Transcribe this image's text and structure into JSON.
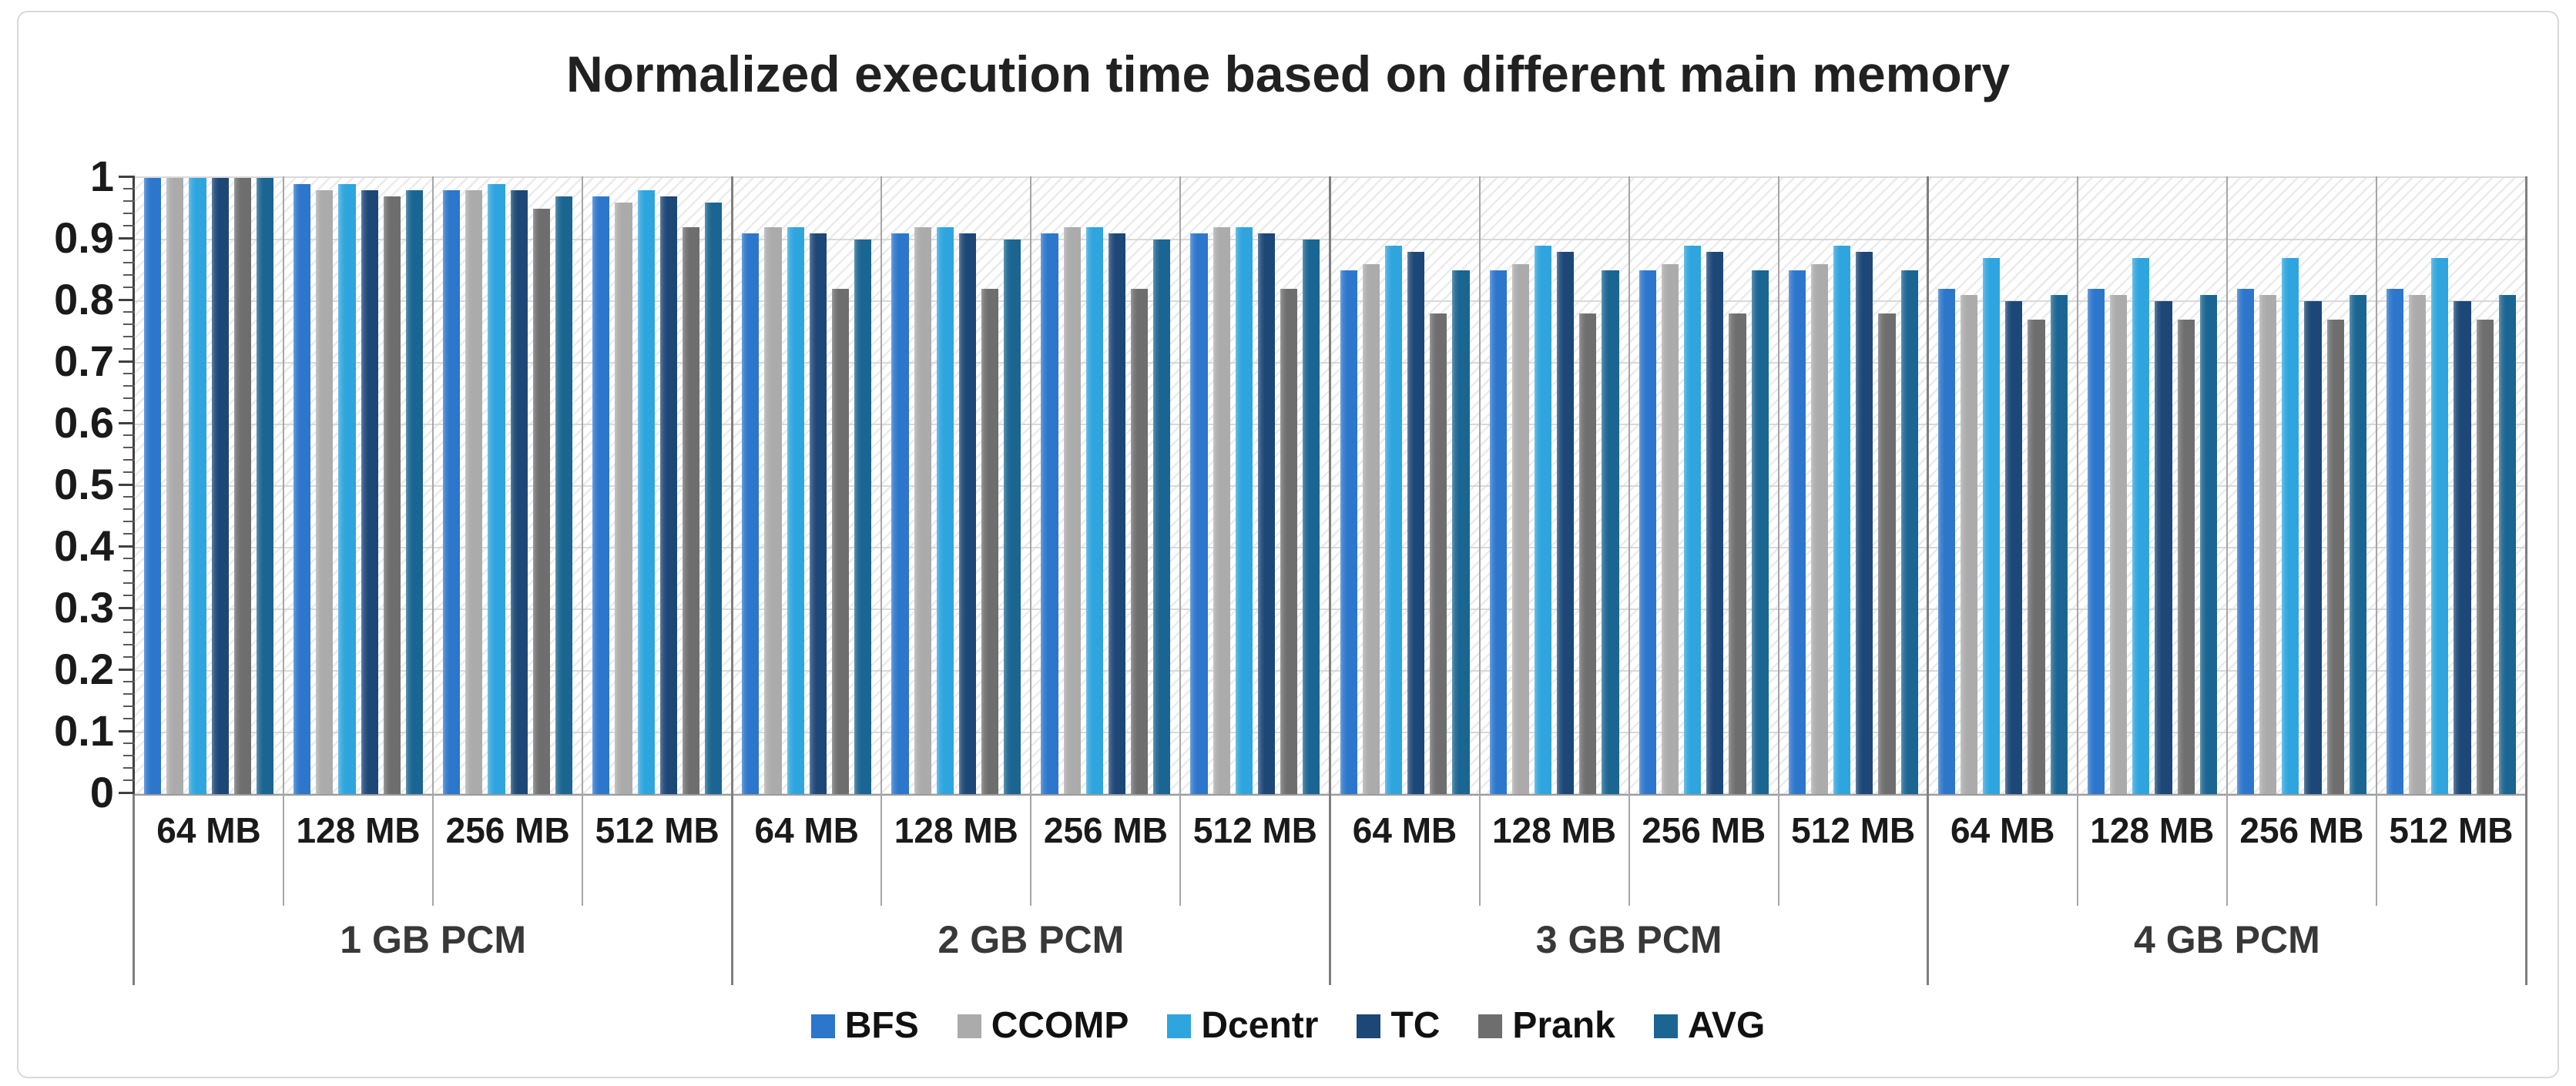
{
  "chart_data": {
    "type": "bar",
    "title": "Normalized execution time based on different main memory",
    "xlabel": "",
    "ylabel": "",
    "ylim": [
      0,
      1
    ],
    "ytick_labels_top_to_bottom": [
      "1",
      "0.9",
      "0.8",
      "0.7",
      "0.6",
      "0.5",
      "0.4",
      "0.3",
      "0.2",
      "0.1",
      "0"
    ],
    "minor_tick_step": 0.02,
    "grid": true,
    "legend_position": "bottom",
    "plot_background": "diagonal-hatch",
    "series": [
      {
        "name": "BFS",
        "color": "#2C76CC"
      },
      {
        "name": "CCOMP",
        "color": "#ABABAB"
      },
      {
        "name": "Dcentr",
        "color": "#2EA5DE"
      },
      {
        "name": "TC",
        "color": "#1C4777"
      },
      {
        "name": "Prank",
        "color": "#6E6E6E"
      },
      {
        "name": "AVG",
        "color": "#1A6591"
      }
    ],
    "groups": [
      {
        "label": "1 GB PCM",
        "clusters": [
          {
            "label": "64 MB",
            "values": [
              1.0,
              1.0,
              1.0,
              1.0,
              1.0,
              1.0
            ]
          },
          {
            "label": "128 MB",
            "values": [
              0.99,
              0.98,
              0.99,
              0.98,
              0.97,
              0.98
            ]
          },
          {
            "label": "256 MB",
            "values": [
              0.98,
              0.98,
              0.99,
              0.98,
              0.95,
              0.97
            ]
          },
          {
            "label": "512 MB",
            "values": [
              0.97,
              0.96,
              0.98,
              0.97,
              0.92,
              0.96
            ]
          }
        ]
      },
      {
        "label": "2 GB PCM",
        "clusters": [
          {
            "label": "64 MB",
            "values": [
              0.91,
              0.92,
              0.92,
              0.91,
              0.82,
              0.9
            ]
          },
          {
            "label": "128 MB",
            "values": [
              0.91,
              0.92,
              0.92,
              0.91,
              0.82,
              0.9
            ]
          },
          {
            "label": "256 MB",
            "values": [
              0.91,
              0.92,
              0.92,
              0.91,
              0.82,
              0.9
            ]
          },
          {
            "label": "512 MB",
            "values": [
              0.91,
              0.92,
              0.92,
              0.91,
              0.82,
              0.9
            ]
          }
        ]
      },
      {
        "label": "3 GB PCM",
        "clusters": [
          {
            "label": "64 MB",
            "values": [
              0.85,
              0.86,
              0.89,
              0.88,
              0.78,
              0.85
            ]
          },
          {
            "label": "128 MB",
            "values": [
              0.85,
              0.86,
              0.89,
              0.88,
              0.78,
              0.85
            ]
          },
          {
            "label": "256 MB",
            "values": [
              0.85,
              0.86,
              0.89,
              0.88,
              0.78,
              0.85
            ]
          },
          {
            "label": "512 MB",
            "values": [
              0.85,
              0.86,
              0.89,
              0.88,
              0.78,
              0.85
            ]
          }
        ]
      },
      {
        "label": "4 GB PCM",
        "clusters": [
          {
            "label": "64 MB",
            "values": [
              0.82,
              0.81,
              0.87,
              0.8,
              0.77,
              0.81
            ]
          },
          {
            "label": "128 MB",
            "values": [
              0.82,
              0.81,
              0.87,
              0.8,
              0.77,
              0.81
            ]
          },
          {
            "label": "256 MB",
            "values": [
              0.82,
              0.81,
              0.87,
              0.8,
              0.77,
              0.81
            ]
          },
          {
            "label": "512 MB",
            "values": [
              0.82,
              0.81,
              0.87,
              0.8,
              0.77,
              0.81
            ]
          }
        ]
      }
    ],
    "layout_colors": {
      "gridline": "#D9D9D9",
      "hatch": "#EBEBEB",
      "axis": "#404040",
      "cluster_divider": "#A6A6A6",
      "group_divider": "#7F7F7F",
      "card_border": "#D9D9D9",
      "title_text": "#212121"
    }
  }
}
